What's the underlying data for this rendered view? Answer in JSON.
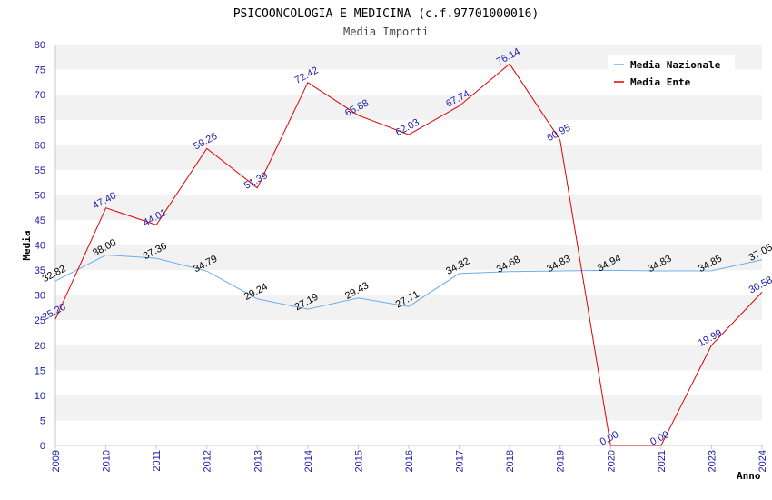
{
  "chart_data": {
    "type": "line",
    "title": "PSICOONCOLOGIA E MEDICINA (c.f.97701000016)",
    "subtitle": "Media Importi",
    "xlabel": "Anno",
    "ylabel": "Media",
    "ylim": [
      0,
      80
    ],
    "yticks": [
      "0",
      "5",
      "10",
      "15",
      "20",
      "25",
      "30",
      "35",
      "40",
      "45",
      "50",
      "55",
      "60",
      "65",
      "70",
      "75",
      "80"
    ],
    "categories": [
      "2009",
      "2010",
      "2011",
      "2012",
      "2013",
      "2014",
      "2015",
      "2016",
      "2017",
      "2018",
      "2019",
      "2020",
      "2021",
      "2023",
      "2024"
    ],
    "legend_position": "top-right",
    "series": [
      {
        "name": "Media Nazionale",
        "color": "#6aaee8",
        "values": [
          32.82,
          38.0,
          37.36,
          34.79,
          29.24,
          27.19,
          29.43,
          27.71,
          34.32,
          34.68,
          34.83,
          34.94,
          34.83,
          34.85,
          37.05
        ],
        "labels": [
          "32.82",
          "38.00",
          "37.36",
          "34.79",
          "29.24",
          "27.19",
          "29.43",
          "27.71",
          "34.32",
          "34.68",
          "34.83",
          "34.94",
          "34.83",
          "34.85",
          "37.05"
        ]
      },
      {
        "name": "Media Ente",
        "color": "#e00000",
        "values": [
          25.2,
          47.4,
          44.01,
          59.26,
          51.39,
          72.42,
          65.88,
          62.03,
          67.74,
          76.14,
          60.95,
          0.0,
          0.0,
          19.99,
          30.58
        ],
        "labels": [
          "25.20",
          "47.40",
          "44.01",
          "59.26",
          "51.39",
          "72.42",
          "65.88",
          "62.03",
          "67.74",
          "76.14",
          "60.95",
          "0.00",
          "0.00",
          "19.99",
          "30.58"
        ]
      }
    ]
  }
}
